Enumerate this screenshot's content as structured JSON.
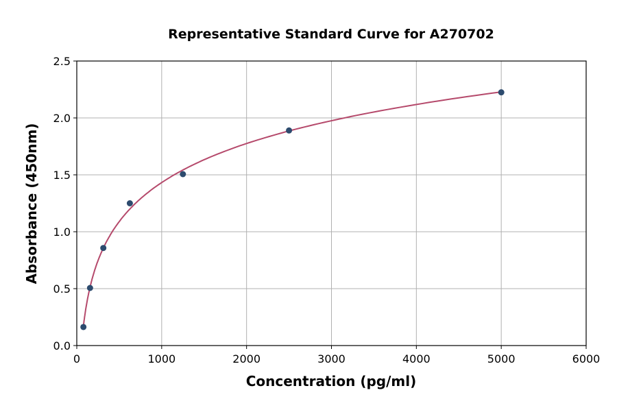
{
  "chart_data": {
    "type": "scatter",
    "title": "Representative Standard Curve for A270702",
    "xlabel": "Concentration (pg/ml)",
    "ylabel": "Absorbance (450nm)",
    "xlim": [
      0,
      6000
    ],
    "ylim": [
      0,
      2.5
    ],
    "xticks": [
      0,
      1000,
      2000,
      3000,
      4000,
      5000,
      6000
    ],
    "yticks": [
      "0.0",
      "0.5",
      "1.0",
      "1.5",
      "2.0",
      "2.5"
    ],
    "grid": true,
    "series": [
      {
        "x": [
          78.125,
          156.25,
          312.5,
          625,
          1250,
          2500,
          5000
        ],
        "y": [
          0.163,
          0.506,
          0.857,
          1.25,
          1.506,
          1.89,
          2.225
        ],
        "marker_color": "#2d4b6e",
        "fit_line": true,
        "line_color": "#b5496b"
      }
    ]
  }
}
